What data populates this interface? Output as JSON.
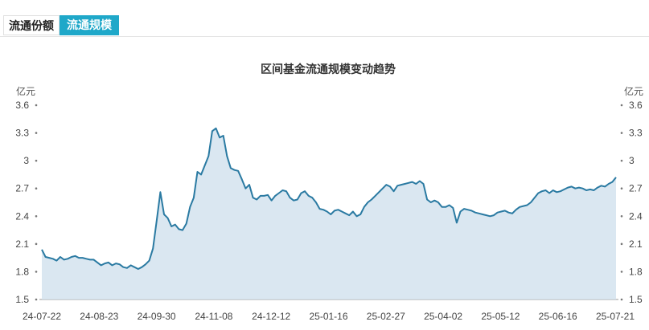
{
  "tabs": [
    {
      "label": "流通份额",
      "active": false
    },
    {
      "label": "流通规模",
      "active": true
    }
  ],
  "colors": {
    "accent": "#1fa8c9",
    "line": "#2a7aa2",
    "area": "#d4e3ee"
  },
  "chart_data": {
    "type": "area",
    "title": "区间基金流通规模变动趋势",
    "unit_left": "亿元",
    "unit_right": "亿元",
    "ylim": [
      1.5,
      3.6
    ],
    "yticks": [
      "1.5",
      "1.8",
      "2.1",
      "2.4",
      "2.7",
      "3",
      "3.3",
      "3.6"
    ],
    "xticks": [
      "24-07-22",
      "24-08-23",
      "24-09-30",
      "24-11-08",
      "24-12-12",
      "25-01-16",
      "25-02-27",
      "25-04-02",
      "25-05-12",
      "25-06-16",
      "25-07-21"
    ],
    "grid": false,
    "series": [
      {
        "values": [
          2.04,
          1.96,
          1.95,
          1.94,
          1.92,
          1.96,
          1.93,
          1.94,
          1.96,
          1.97,
          1.95,
          1.95,
          1.94,
          1.93,
          1.93,
          1.9,
          1.87,
          1.89,
          1.9,
          1.87,
          1.89,
          1.88,
          1.85,
          1.84,
          1.87,
          1.85,
          1.83,
          1.85,
          1.88,
          1.92,
          2.05,
          2.35,
          2.66,
          2.42,
          2.38,
          2.29,
          2.31,
          2.26,
          2.25,
          2.32,
          2.5,
          2.6,
          2.88,
          2.85,
          2.95,
          3.05,
          3.32,
          3.35,
          3.25,
          3.27,
          3.05,
          2.92,
          2.9,
          2.89,
          2.8,
          2.7,
          2.74,
          2.6,
          2.58,
          2.62,
          2.62,
          2.63,
          2.57,
          2.62,
          2.65,
          2.68,
          2.67,
          2.6,
          2.57,
          2.58,
          2.65,
          2.67,
          2.62,
          2.6,
          2.55,
          2.48,
          2.47,
          2.45,
          2.42,
          2.46,
          2.47,
          2.45,
          2.43,
          2.41,
          2.45,
          2.4,
          2.42,
          2.5,
          2.55,
          2.58,
          2.62,
          2.66,
          2.7,
          2.74,
          2.72,
          2.67,
          2.73,
          2.74,
          2.75,
          2.76,
          2.77,
          2.75,
          2.78,
          2.75,
          2.58,
          2.55,
          2.57,
          2.55,
          2.5,
          2.5,
          2.52,
          2.49,
          2.33,
          2.45,
          2.48,
          2.47,
          2.46,
          2.44,
          2.43,
          2.42,
          2.41,
          2.4,
          2.41,
          2.44,
          2.45,
          2.46,
          2.44,
          2.43,
          2.47,
          2.5,
          2.51,
          2.52,
          2.55,
          2.6,
          2.65,
          2.67,
          2.68,
          2.65,
          2.68,
          2.66,
          2.67,
          2.69,
          2.71,
          2.72,
          2.7,
          2.71,
          2.7,
          2.68,
          2.69,
          2.68,
          2.71,
          2.73,
          2.72,
          2.75,
          2.77,
          2.82
        ]
      }
    ]
  }
}
